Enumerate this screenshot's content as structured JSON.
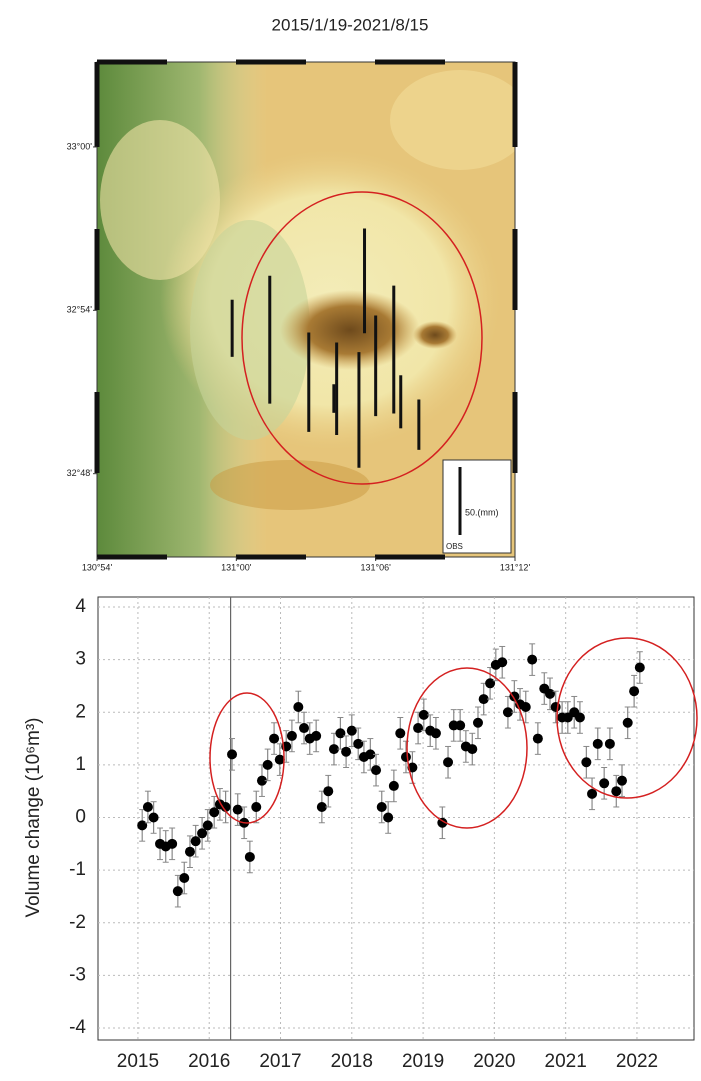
{
  "chart_data": [
    {
      "type": "map",
      "title": "2015/1/19-2021/8/15",
      "xlim": [
        130.9,
        131.2
      ],
      "ylim": [
        32.749,
        33.052
      ],
      "xticks": [
        {
          "value": 130.9,
          "label": "130°54'"
        },
        {
          "value": 131.0,
          "label": "131°00'"
        },
        {
          "value": 131.1,
          "label": "131°06'"
        },
        {
          "value": 131.2,
          "label": "131°12'"
        }
      ],
      "yticks": [
        {
          "value": 33.0,
          "label": "33°00'"
        },
        {
          "value": 32.9,
          "label": "32°54'"
        },
        {
          "value": 32.8,
          "label": "32°48'"
        }
      ],
      "lon": [
        130.997,
        131.024,
        131.052,
        131.07,
        131.072,
        131.088,
        131.092,
        131.1,
        131.113,
        131.118,
        131.131
      ],
      "lat": [
        32.889,
        32.882,
        32.856,
        32.846,
        32.852,
        32.839,
        32.918,
        32.866,
        32.876,
        32.844,
        32.83
      ],
      "values": [
        42,
        94,
        73,
        21,
        68,
        85,
        77,
        74,
        94,
        39,
        37
      ],
      "color": "#111111",
      "legend": {
        "value": 50,
        "label": "50.(mm)"
      },
      "legend_title": "OBS"
    },
    {
      "type": "scatter",
      "ylabel": "Volume change (10⁶m³)",
      "x": [
        2015.06,
        2015.14,
        2015.22,
        2015.31,
        2015.39,
        2015.48,
        2015.56,
        2015.65,
        2015.73,
        2015.81,
        2015.9,
        2015.98,
        2016.07,
        2016.15,
        2016.23,
        2016.32,
        2016.4,
        2016.49,
        2016.57,
        2016.66,
        2016.74,
        2016.82,
        2016.91,
        2016.99,
        2017.08,
        2017.16,
        2017.25,
        2017.33,
        2017.41,
        2017.5,
        2017.58,
        2017.67,
        2017.75,
        2017.84,
        2017.92,
        2018.0,
        2018.09,
        2018.17,
        2018.26,
        2018.34,
        2018.42,
        2018.51,
        2018.59,
        2018.68,
        2018.76,
        2018.85,
        2018.93,
        2019.01,
        2019.1,
        2019.18,
        2019.27,
        2019.35,
        2019.43,
        2019.52,
        2019.6,
        2019.69,
        2019.77,
        2019.85,
        2019.94,
        2020.02,
        2020.11,
        2020.19,
        2020.28,
        2020.36,
        2020.44,
        2020.53,
        2020.61,
        2020.7,
        2020.78,
        2020.86,
        2020.95,
        2021.03,
        2021.12,
        2021.2,
        2021.29,
        2021.37,
        2021.45,
        2021.54,
        2021.62,
        2021.71,
        2021.79,
        2021.87,
        2021.96,
        2022.04
      ],
      "values": [
        -0.15,
        0.2,
        0.0,
        -0.5,
        -0.55,
        -0.5,
        -1.4,
        -1.15,
        -0.65,
        -0.45,
        -0.3,
        -0.15,
        0.1,
        0.25,
        0.2,
        1.2,
        0.15,
        -0.1,
        -0.75,
        0.2,
        0.7,
        1.0,
        1.5,
        1.1,
        1.35,
        1.55,
        2.1,
        1.7,
        1.5,
        1.55,
        0.2,
        0.5,
        1.3,
        1.6,
        1.25,
        1.65,
        1.4,
        1.15,
        1.2,
        0.9,
        0.2,
        0.0,
        0.6,
        1.6,
        1.15,
        0.95,
        1.7,
        1.95,
        1.65,
        1.6,
        -0.1,
        1.05,
        1.75,
        1.75,
        1.35,
        1.3,
        1.8,
        2.25,
        2.55,
        2.9,
        2.95,
        2.0,
        2.3,
        2.15,
        2.1,
        3.0,
        1.5,
        2.45,
        2.35,
        2.1,
        1.9,
        1.9,
        2.0,
        1.9,
        1.05,
        0.45,
        1.4,
        0.65,
        1.4,
        0.5,
        0.7,
        1.8,
        2.4,
        2.85
      ],
      "error": 0.3,
      "color": "#000000",
      "vline": 2016.3,
      "xlim": [
        2014.44,
        2022.8
      ],
      "ylim": [
        -4,
        4
      ],
      "xticks": [
        2015,
        2016,
        2017,
        2018,
        2019,
        2020,
        2021,
        2022
      ],
      "yticks": [
        -4,
        -3,
        -2,
        -1,
        0,
        1,
        2,
        3,
        4
      ],
      "grid": true
    }
  ]
}
